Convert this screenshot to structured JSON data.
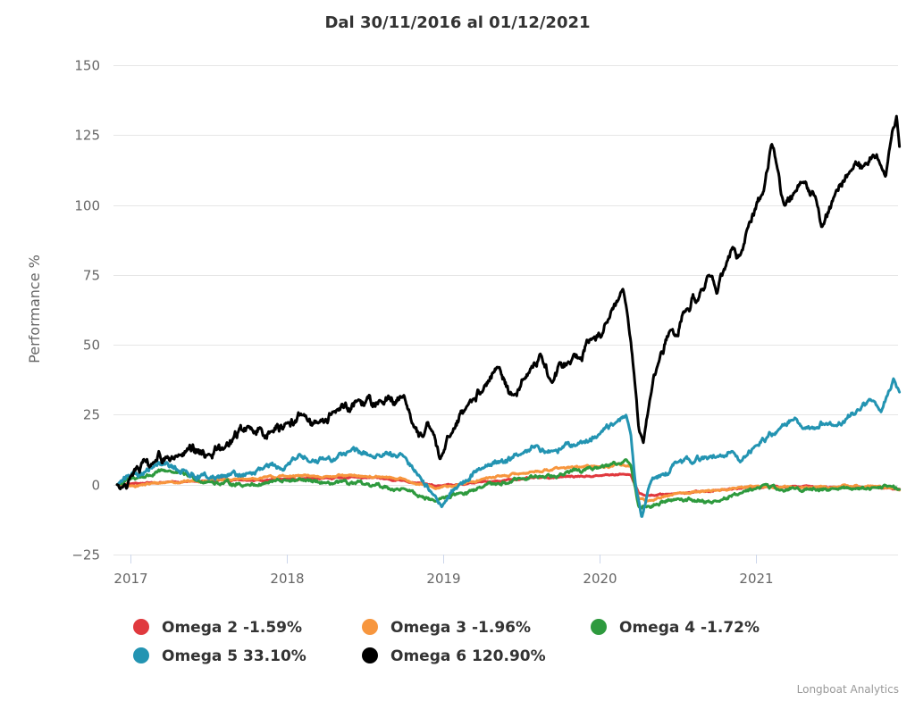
{
  "chart_data": {
    "type": "line",
    "title": "Dal 30/11/2016 al 01/12/2021",
    "xlabel": "",
    "ylabel": "Performance %",
    "xlim": [
      2016.915,
      2021.918
    ],
    "ylim": [
      -25,
      150
    ],
    "yticks": [
      -25,
      0,
      25,
      50,
      75,
      100,
      125,
      150
    ],
    "xticks": [
      {
        "value": 2017,
        "label": "2017"
      },
      {
        "value": 2018,
        "label": "2018"
      },
      {
        "value": 2019,
        "label": "2019"
      },
      {
        "value": 2020,
        "label": "2020"
      },
      {
        "value": 2021,
        "label": "2021"
      }
    ],
    "grid": true,
    "legend_position": "bottom",
    "credits": "Longboat Analytics",
    "series": [
      {
        "name": "Omega 2",
        "legend_label": "Omega 2 -1.59%",
        "final_value": -1.59,
        "color": "#e0393e",
        "points": [
          [
            2016.915,
            0
          ],
          [
            2017.0,
            0.3
          ],
          [
            2017.25,
            1
          ],
          [
            2017.5,
            1.2
          ],
          [
            2017.75,
            1.5
          ],
          [
            2018.0,
            2
          ],
          [
            2018.25,
            2.5
          ],
          [
            2018.5,
            2.5
          ],
          [
            2018.75,
            1.5
          ],
          [
            2018.95,
            -0.5
          ],
          [
            2019.1,
            0
          ],
          [
            2019.25,
            1
          ],
          [
            2019.5,
            2
          ],
          [
            2019.75,
            2.8
          ],
          [
            2020.0,
            3.2
          ],
          [
            2020.15,
            3.8
          ],
          [
            2020.2,
            3.5
          ],
          [
            2020.25,
            -3
          ],
          [
            2020.3,
            -4
          ],
          [
            2020.5,
            -3
          ],
          [
            2020.75,
            -2
          ],
          [
            2021.0,
            -0.8
          ],
          [
            2021.25,
            -0.5
          ],
          [
            2021.5,
            -0.8
          ],
          [
            2021.75,
            -1
          ],
          [
            2021.918,
            -1.59
          ]
        ]
      },
      {
        "name": "Omega 3",
        "legend_label": "Omega 3 -1.96%",
        "final_value": -1.96,
        "color": "#f7963e",
        "points": [
          [
            2016.915,
            0
          ],
          [
            2017.0,
            -0.5
          ],
          [
            2017.25,
            1
          ],
          [
            2017.5,
            1.5
          ],
          [
            2017.75,
            2
          ],
          [
            2018.0,
            3
          ],
          [
            2018.25,
            3
          ],
          [
            2018.5,
            3
          ],
          [
            2018.75,
            2
          ],
          [
            2018.95,
            -1.5
          ],
          [
            2019.1,
            0
          ],
          [
            2019.25,
            2
          ],
          [
            2019.5,
            4
          ],
          [
            2019.75,
            6
          ],
          [
            2020.0,
            6.5
          ],
          [
            2020.15,
            7
          ],
          [
            2020.2,
            6.5
          ],
          [
            2020.25,
            -5
          ],
          [
            2020.3,
            -6
          ],
          [
            2020.5,
            -3
          ],
          [
            2020.75,
            -2
          ],
          [
            2021.0,
            -0.5
          ],
          [
            2021.25,
            -1
          ],
          [
            2021.5,
            -0.8
          ],
          [
            2021.75,
            -0.5
          ],
          [
            2021.918,
            -1.96
          ]
        ]
      },
      {
        "name": "Omega 4",
        "legend_label": "Omega 4 -1.72%",
        "final_value": -1.72,
        "color": "#2e9a3e",
        "points": [
          [
            2016.915,
            0
          ],
          [
            2017.0,
            2
          ],
          [
            2017.25,
            5
          ],
          [
            2017.5,
            1
          ],
          [
            2017.75,
            0
          ],
          [
            2018.0,
            1.5
          ],
          [
            2018.25,
            0.5
          ],
          [
            2018.5,
            0
          ],
          [
            2018.75,
            -1.5
          ],
          [
            2018.95,
            -6
          ],
          [
            2019.1,
            -3
          ],
          [
            2019.25,
            -1
          ],
          [
            2019.5,
            2
          ],
          [
            2019.75,
            4
          ],
          [
            2020.0,
            6
          ],
          [
            2020.12,
            7.5
          ],
          [
            2020.17,
            9
          ],
          [
            2020.2,
            7
          ],
          [
            2020.25,
            -8
          ],
          [
            2020.3,
            -8
          ],
          [
            2020.5,
            -5
          ],
          [
            2020.75,
            -6
          ],
          [
            2020.9,
            -3
          ],
          [
            2021.0,
            -1.5
          ],
          [
            2021.05,
            0
          ],
          [
            2021.15,
            -2
          ],
          [
            2021.25,
            -1.5
          ],
          [
            2021.5,
            -1.5
          ],
          [
            2021.75,
            -1
          ],
          [
            2021.85,
            -0.5
          ],
          [
            2021.918,
            -1.72
          ]
        ]
      },
      {
        "name": "Omega 5",
        "legend_label": "Omega 5 33.10%",
        "final_value": 33.1,
        "color": "#2394b2",
        "points": [
          [
            2016.915,
            0
          ],
          [
            2017.0,
            3
          ],
          [
            2017.2,
            7
          ],
          [
            2017.35,
            5
          ],
          [
            2017.5,
            2
          ],
          [
            2017.75,
            4
          ],
          [
            2018.0,
            7
          ],
          [
            2018.08,
            11
          ],
          [
            2018.15,
            8
          ],
          [
            2018.25,
            9
          ],
          [
            2018.4,
            12
          ],
          [
            2018.6,
            10
          ],
          [
            2018.75,
            10
          ],
          [
            2018.85,
            3
          ],
          [
            2018.95,
            -4
          ],
          [
            2018.99,
            -8
          ],
          [
            2019.1,
            0
          ],
          [
            2019.25,
            6
          ],
          [
            2019.5,
            11
          ],
          [
            2019.6,
            14
          ],
          [
            2019.7,
            12
          ],
          [
            2019.85,
            14
          ],
          [
            2020.0,
            18
          ],
          [
            2020.1,
            22
          ],
          [
            2020.17,
            25
          ],
          [
            2020.2,
            18
          ],
          [
            2020.23,
            0
          ],
          [
            2020.27,
            -12
          ],
          [
            2020.32,
            0
          ],
          [
            2020.5,
            8
          ],
          [
            2020.75,
            10
          ],
          [
            2020.85,
            12
          ],
          [
            2020.9,
            8
          ],
          [
            2021.0,
            14
          ],
          [
            2021.15,
            20
          ],
          [
            2021.25,
            24
          ],
          [
            2021.3,
            20
          ],
          [
            2021.45,
            22
          ],
          [
            2021.5,
            21
          ],
          [
            2021.65,
            27
          ],
          [
            2021.75,
            30
          ],
          [
            2021.8,
            26
          ],
          [
            2021.88,
            38
          ],
          [
            2021.918,
            33.1
          ]
        ]
      },
      {
        "name": "Omega 6",
        "legend_label": "Omega 6 120.90%",
        "final_value": 120.9,
        "color": "#000000",
        "points": [
          [
            2016.915,
            0
          ],
          [
            2016.95,
            -1
          ],
          [
            2017.0,
            3
          ],
          [
            2017.15,
            8
          ],
          [
            2017.3,
            10
          ],
          [
            2017.5,
            11
          ],
          [
            2017.6,
            13
          ],
          [
            2017.75,
            21
          ],
          [
            2017.9,
            19
          ],
          [
            2018.0,
            22
          ],
          [
            2018.1,
            25
          ],
          [
            2018.2,
            22
          ],
          [
            2018.3,
            26
          ],
          [
            2018.45,
            30
          ],
          [
            2018.6,
            30
          ],
          [
            2018.75,
            32
          ],
          [
            2018.8,
            22
          ],
          [
            2018.87,
            17
          ],
          [
            2018.92,
            20
          ],
          [
            2018.98,
            9
          ],
          [
            2019.05,
            18
          ],
          [
            2019.15,
            28
          ],
          [
            2019.25,
            33
          ],
          [
            2019.35,
            42
          ],
          [
            2019.45,
            32
          ],
          [
            2019.55,
            40
          ],
          [
            2019.62,
            47
          ],
          [
            2019.68,
            38
          ],
          [
            2019.8,
            44
          ],
          [
            2019.95,
            52
          ],
          [
            2020.05,
            58
          ],
          [
            2020.12,
            66
          ],
          [
            2020.15,
            70
          ],
          [
            2020.18,
            60
          ],
          [
            2020.22,
            40
          ],
          [
            2020.25,
            20
          ],
          [
            2020.28,
            15
          ],
          [
            2020.32,
            30
          ],
          [
            2020.38,
            44
          ],
          [
            2020.45,
            55
          ],
          [
            2020.55,
            62
          ],
          [
            2020.65,
            70
          ],
          [
            2020.7,
            75
          ],
          [
            2020.75,
            68
          ],
          [
            2020.85,
            85
          ],
          [
            2020.9,
            82
          ],
          [
            2020.95,
            92
          ],
          [
            2021.05,
            105
          ],
          [
            2021.1,
            122
          ],
          [
            2021.13,
            115
          ],
          [
            2021.18,
            100
          ],
          [
            2021.25,
            105
          ],
          [
            2021.3,
            108
          ],
          [
            2021.38,
            103
          ],
          [
            2021.42,
            92
          ],
          [
            2021.5,
            103
          ],
          [
            2021.6,
            112
          ],
          [
            2021.7,
            115
          ],
          [
            2021.75,
            118
          ],
          [
            2021.8,
            114
          ],
          [
            2021.83,
            110
          ],
          [
            2021.86,
            122
          ],
          [
            2021.9,
            132
          ],
          [
            2021.918,
            120.9
          ]
        ]
      }
    ]
  }
}
